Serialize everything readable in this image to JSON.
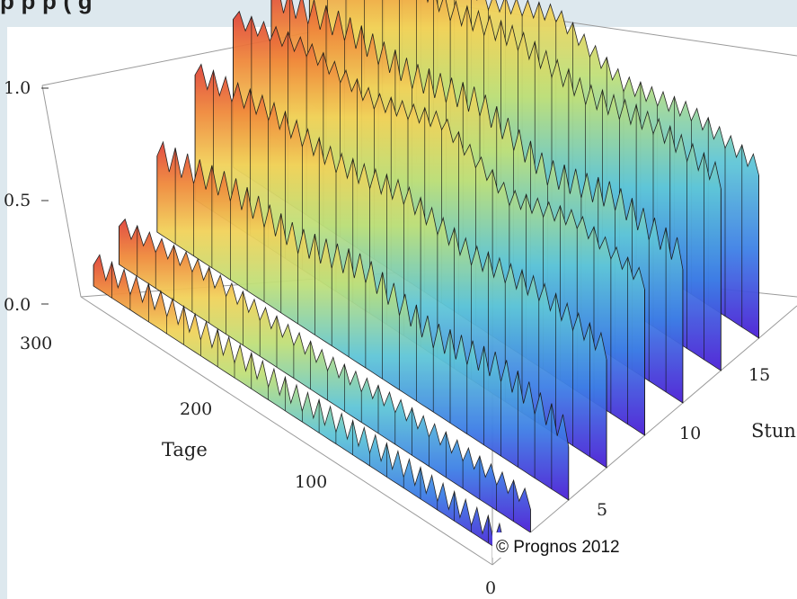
{
  "header": {
    "title_fragment": "p                        p   p                     (                 g"
  },
  "chart_data": {
    "type": "surface3d",
    "z_axis": {
      "range": [
        0.0,
        1.0
      ],
      "ticks": [
        "0.0",
        "0.5",
        "1.0"
      ]
    },
    "x_axis": {
      "label": "Tage",
      "range": [
        0,
        365
      ],
      "ticks": [
        "0",
        "100",
        "200",
        "300"
      ]
    },
    "y_axis": {
      "label": "Stunde",
      "range": [
        0,
        24
      ],
      "ticks": [
        "5",
        "10",
        "15"
      ]
    },
    "series_by_hour": [
      {
        "hour": 1,
        "values": [
          0.06,
          0.08,
          0.1,
          0.09,
          0.11,
          0.12,
          0.1
        ]
      },
      {
        "hour": 3,
        "values": [
          0.14,
          0.16,
          0.18,
          0.17,
          0.2,
          0.22,
          0.18
        ]
      },
      {
        "hour": 6,
        "values": [
          0.3,
          0.4,
          0.35,
          0.45,
          0.38,
          0.42,
          0.36
        ]
      },
      {
        "hour": 9,
        "values": [
          0.55,
          0.62,
          0.58,
          0.66,
          0.6,
          0.64,
          0.59
        ]
      },
      {
        "hour": 12,
        "values": [
          0.72,
          0.8,
          0.7,
          0.85,
          0.74,
          0.78,
          0.7
        ]
      },
      {
        "hour": 15,
        "values": [
          0.68,
          0.75,
          0.66,
          0.78,
          0.7,
          0.72,
          0.65
        ]
      },
      {
        "hour": 18,
        "values": [
          0.9,
          0.95,
          0.88,
          0.93,
          0.86,
          0.92,
          0.84
        ]
      },
      {
        "hour": 21,
        "values": [
          0.8,
          0.85,
          0.78,
          0.9,
          0.75,
          0.82,
          0.76
        ]
      }
    ],
    "day_samples": [
      0,
      60,
      120,
      180,
      240,
      300,
      365
    ],
    "colormap": [
      "#4b1fd6",
      "#3e7fe6",
      "#5fc6d8",
      "#bfe07a",
      "#f2d25a",
      "#f08a3c",
      "#e0443a"
    ],
    "copyright": "© Prognos 2012"
  }
}
